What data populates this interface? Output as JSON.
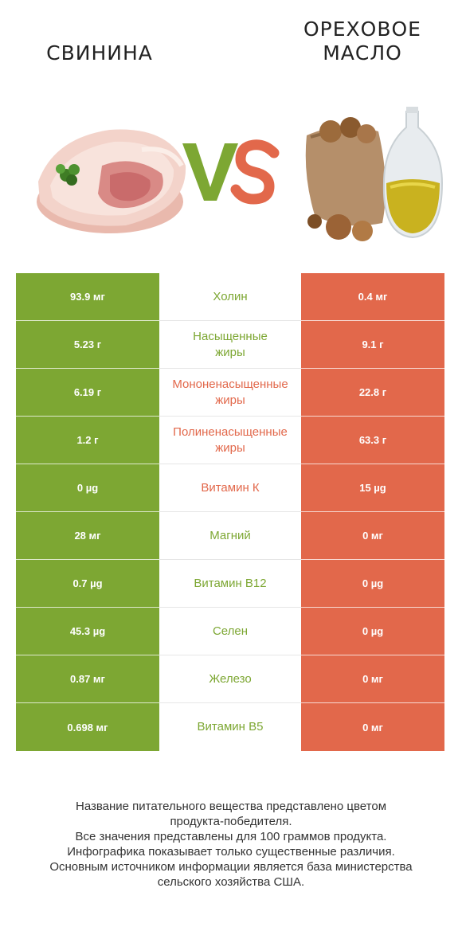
{
  "header": {
    "left_title": "СВИНИНА",
    "right_title_line1": "ОРЕХОВОЕ",
    "right_title_line2": "МАСЛО",
    "vs": "VS"
  },
  "colors": {
    "left_winner": "#7da733",
    "right_winner": "#e2684b"
  },
  "rows": [
    {
      "left": "93.9 мг",
      "nutrient": "Холин",
      "winner": "left",
      "right": "0.4 мг"
    },
    {
      "left": "5.23 г",
      "nutrient_line1": "Насыщенные",
      "nutrient_line2": "жиры",
      "winner": "left",
      "right": "9.1 г"
    },
    {
      "left": "6.19 г",
      "nutrient_line1": "Мононенасыщенные",
      "nutrient_line2": "жиры",
      "winner": "right",
      "right": "22.8 г"
    },
    {
      "left": "1.2 г",
      "nutrient_line1": "Полиненасыщенные",
      "nutrient_line2": "жиры",
      "winner": "right",
      "right": "63.3 г"
    },
    {
      "left": "0 µg",
      "nutrient": "Витамин К",
      "winner": "right",
      "right": "15 µg"
    },
    {
      "left": "28 мг",
      "nutrient": "Магний",
      "winner": "left",
      "right": "0 мг"
    },
    {
      "left": "0.7 µg",
      "nutrient": "Витамин B12",
      "winner": "left",
      "right": "0 µg"
    },
    {
      "left": "45.3 µg",
      "nutrient": "Селен",
      "winner": "left",
      "right": "0 µg"
    },
    {
      "left": "0.87 мг",
      "nutrient": "Железо",
      "winner": "left",
      "right": "0 мг"
    },
    {
      "left": "0.698 мг",
      "nutrient": "Витамин B5",
      "winner": "left",
      "right": "0 мг"
    }
  ],
  "footer": {
    "line1": "Название питательного вещества представлено цветом",
    "line2": "продукта-победителя.",
    "line3": "Все значения представлены для 100 граммов продукта.",
    "line4": "Инфографика показывает только существенные различия.",
    "line5": "Основным источником информации является база министерства",
    "line6": "сельского хозяйства США."
  }
}
